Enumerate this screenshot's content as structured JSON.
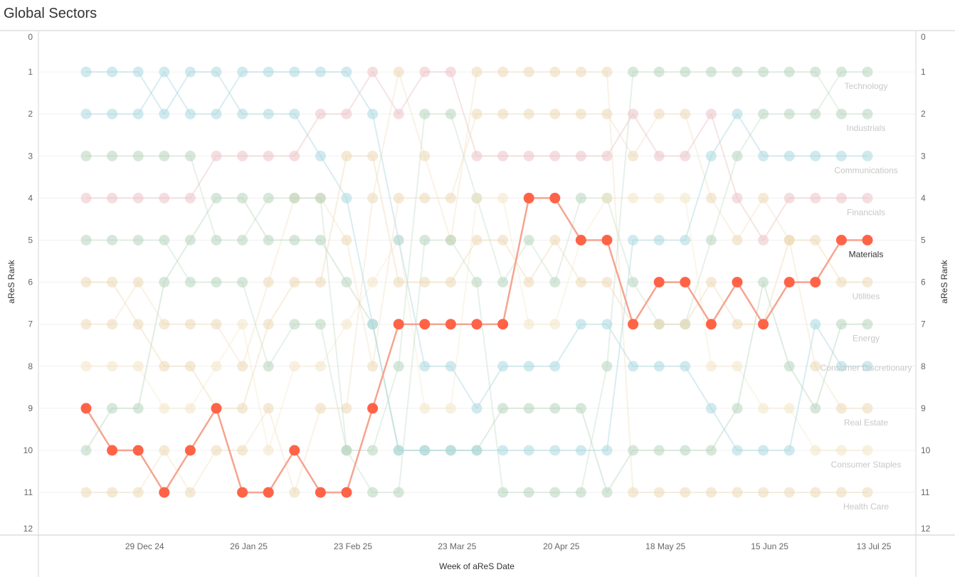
{
  "title": "Global Sectors",
  "chart_data": {
    "type": "line",
    "subtype": "bump",
    "title": "Global Sectors",
    "xlabel": "Week of aReS Date",
    "ylabel": "aReS Rank",
    "y_reversed": true,
    "ylim": [
      0,
      12
    ],
    "y_ticks": [
      0,
      1,
      2,
      3,
      4,
      5,
      6,
      7,
      8,
      9,
      10,
      11,
      12
    ],
    "x_tick_labels": [
      "29 Dec 24",
      "26 Jan 25",
      "23 Feb 25",
      "23 Mar 25",
      "20 Apr 25",
      "18 May 25",
      "15 Jun 25",
      "13 Jul 25"
    ],
    "x_tick_positions": [
      2,
      6,
      10,
      14,
      18,
      22,
      26,
      30
    ],
    "n_weeks": 31,
    "highlighted_series": "Materials",
    "series": [
      {
        "name": "Materials",
        "color": "#ff6347",
        "highlight": true,
        "values": [
          9,
          10,
          10,
          11,
          10,
          9,
          11,
          11,
          10,
          11,
          11,
          9,
          7,
          7,
          7,
          7,
          7,
          4,
          4,
          5,
          5,
          7,
          6,
          6,
          7,
          6,
          7,
          6,
          6,
          5,
          5
        ]
      },
      {
        "name": "Technology",
        "color": "#a9d8e0",
        "values": [
          2,
          2,
          2,
          1,
          2,
          2,
          1,
          1,
          1,
          1,
          1,
          2,
          5,
          8,
          8,
          9,
          8,
          8,
          8,
          7,
          7,
          8,
          8,
          8,
          9,
          10,
          10,
          10,
          7,
          8,
          8
        ]
      },
      {
        "name": "Industrials",
        "color": "#b7d6bd",
        "values": [
          10,
          9,
          9,
          6,
          5,
          4,
          4,
          5,
          5,
          5,
          6,
          7,
          10,
          10,
          10,
          10,
          9,
          9,
          9,
          9,
          11,
          10,
          10,
          10,
          10,
          9,
          6,
          8,
          9,
          7,
          7
        ]
      },
      {
        "name": "Communications",
        "color": "#a9d8e0",
        "values": [
          1,
          1,
          1,
          2,
          1,
          1,
          2,
          2,
          2,
          3,
          4,
          7,
          10,
          10,
          10,
          10,
          10,
          10,
          10,
          10,
          10,
          5,
          5,
          5,
          3,
          2,
          3,
          3,
          3,
          3,
          3
        ]
      },
      {
        "name": "Financials",
        "color": "#ecc2c6",
        "values": [
          4,
          4,
          4,
          4,
          4,
          3,
          3,
          3,
          3,
          2,
          2,
          1,
          2,
          1,
          1,
          3,
          3,
          3,
          3,
          3,
          3,
          2,
          3,
          3,
          2,
          4,
          5,
          4,
          4,
          4,
          4
        ]
      },
      {
        "name": "Utilities",
        "color": "#edd9b4",
        "values": [
          6,
          6,
          7,
          8,
          8,
          9,
          9,
          7,
          6,
          6,
          3,
          3,
          6,
          6,
          6,
          5,
          5,
          6,
          5,
          6,
          6,
          7,
          7,
          7,
          6,
          7,
          7,
          5,
          5,
          6,
          6
        ]
      }
    ],
    "background_series": [
      {
        "name": "Energy",
        "color": "#b7d6bd",
        "values": [
          5,
          5,
          5,
          5,
          6,
          6,
          6,
          8,
          7,
          7,
          10,
          10,
          8,
          2,
          2,
          4,
          6,
          5,
          6,
          4,
          4,
          6,
          7,
          7,
          5,
          3,
          2,
          2,
          2,
          1,
          1
        ]
      },
      {
        "name": "Consumer Discretionary",
        "color": "#edd9b4",
        "values": [
          7,
          7,
          6,
          7,
          7,
          7,
          8,
          6,
          4,
          4,
          5,
          8,
          4,
          4,
          4,
          2,
          2,
          2,
          2,
          2,
          2,
          3,
          2,
          2,
          4,
          5,
          4,
          5,
          8,
          9,
          9
        ]
      },
      {
        "name": "Real Estate",
        "color": "#f3e6c4",
        "values": [
          8,
          8,
          8,
          9,
          9,
          8,
          7,
          10,
          8,
          8,
          7,
          6,
          5,
          9,
          9,
          4,
          4,
          7,
          7,
          5,
          4,
          4,
          4,
          4,
          8,
          8,
          9,
          9,
          10,
          10,
          10
        ]
      },
      {
        "name": "Consumer Staples",
        "color": "#edd9b4",
        "values": [
          11,
          11,
          11,
          10,
          11,
          10,
          10,
          9,
          11,
          9,
          9,
          4,
          1,
          3,
          5,
          1,
          1,
          1,
          1,
          1,
          1,
          11,
          11,
          11,
          11,
          11,
          11,
          11,
          11,
          11,
          11
        ]
      },
      {
        "name": "Health Care",
        "color": "#b7d6bd",
        "values": [
          3,
          3,
          3,
          3,
          3,
          5,
          5,
          4,
          4,
          4,
          10,
          11,
          11,
          5,
          5,
          6,
          11,
          11,
          11,
          11,
          8,
          1,
          1,
          1,
          1,
          1,
          1,
          1,
          1,
          2,
          2
        ]
      }
    ],
    "series_labels": [
      {
        "name": "Technology",
        "rank": 1
      },
      {
        "name": "Industrials",
        "rank": 2
      },
      {
        "name": "Communications",
        "rank": 3
      },
      {
        "name": "Financials",
        "rank": 4
      },
      {
        "name": "Materials",
        "rank": 5
      },
      {
        "name": "Utilities",
        "rank": 6
      },
      {
        "name": "Energy",
        "rank": 7
      },
      {
        "name": "Consumer Discretionary",
        "rank": 7.7
      },
      {
        "name": "Real Estate",
        "rank": 9
      },
      {
        "name": "Consumer Staples",
        "rank": 10
      },
      {
        "name": "Health Care",
        "rank": 11
      }
    ],
    "grid": true,
    "legend": "none"
  }
}
